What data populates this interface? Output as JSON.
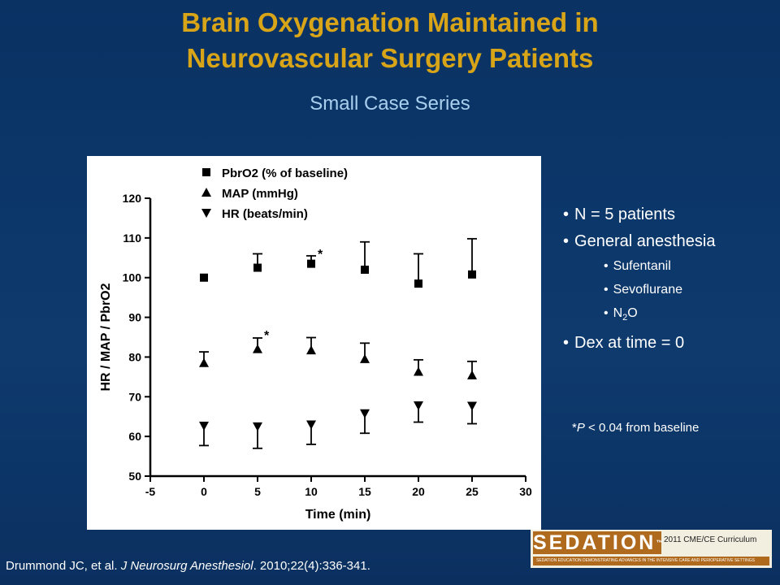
{
  "slide": {
    "title_line1": "Brain Oxygenation Maintained in",
    "title_line2": "Neurovascular Surgery Patients",
    "subtitle": "Small Case Series",
    "bullets": [
      {
        "text": "N = 5 patients",
        "level": 1
      },
      {
        "text": "General anesthesia",
        "level": 1
      },
      {
        "text": "Sufentanil",
        "level": 2
      },
      {
        "text": "Sevoflurane",
        "level": 2
      },
      {
        "text": "N",
        "sub": "2",
        "suffix": "O",
        "level": 2
      },
      {
        "text": "Dex at time = 0",
        "level": 1
      }
    ],
    "pvalue_note": {
      "prefix": "*",
      "italic": "P",
      "rest": " < 0.04 from baseline"
    },
    "citation": {
      "authors": "Drummond JC, et al. ",
      "journal": "J Neurosurg Anesthesiol",
      "rest": ". 2010;22(4):336-341."
    },
    "logo": {
      "word": "SEDATION",
      "tm": "™",
      "year_text": "2011 CME/CE Curriculum",
      "band": "SEDATION EDUCATION DEMONSTRATING ADVANCES IN THE INTENSIVE CARE AND PERIOPERATIVE SETTINGS"
    }
  },
  "chart_data": {
    "type": "scatter",
    "xlabel": "Time (min)",
    "ylabel": "HR / MAP / PbrO2",
    "xlim": [
      -5,
      30
    ],
    "ylim": [
      50,
      120
    ],
    "xticks": [
      -5,
      0,
      5,
      10,
      15,
      20,
      25,
      30
    ],
    "yticks": [
      50,
      60,
      70,
      80,
      90,
      100,
      110,
      120
    ],
    "legend_position": "top-left",
    "series": [
      {
        "name": "PbrO2 (% of baseline)",
        "marker": "square",
        "x": [
          0,
          5,
          10,
          15,
          20,
          25
        ],
        "y": [
          100,
          102.5,
          103.5,
          102,
          98.5,
          100.8
        ],
        "error": [
          0,
          3.5,
          2,
          7,
          7.5,
          9
        ],
        "error_direction": "up"
      },
      {
        "name": "MAP (mmHg)",
        "marker": "triangle-up",
        "x": [
          0,
          5,
          10,
          15,
          20,
          25
        ],
        "y": [
          78.5,
          82,
          81.7,
          79.5,
          76.3,
          75.4
        ],
        "error": [
          2.8,
          2.8,
          3.2,
          4,
          3,
          3.5
        ],
        "error_direction": "up"
      },
      {
        "name": "HR (beats/min)",
        "marker": "triangle-down",
        "x": [
          0,
          5,
          10,
          15,
          20,
          25
        ],
        "y": [
          62.7,
          62.5,
          63,
          65.8,
          67.8,
          67.7
        ],
        "error": [
          5,
          5.5,
          5,
          5,
          4.2,
          4.5
        ],
        "error_direction": "down"
      }
    ],
    "annotations": [
      {
        "text": "*",
        "x": 10,
        "y": 106.5
      },
      {
        "text": "*",
        "x": 5,
        "y": 86
      }
    ]
  }
}
